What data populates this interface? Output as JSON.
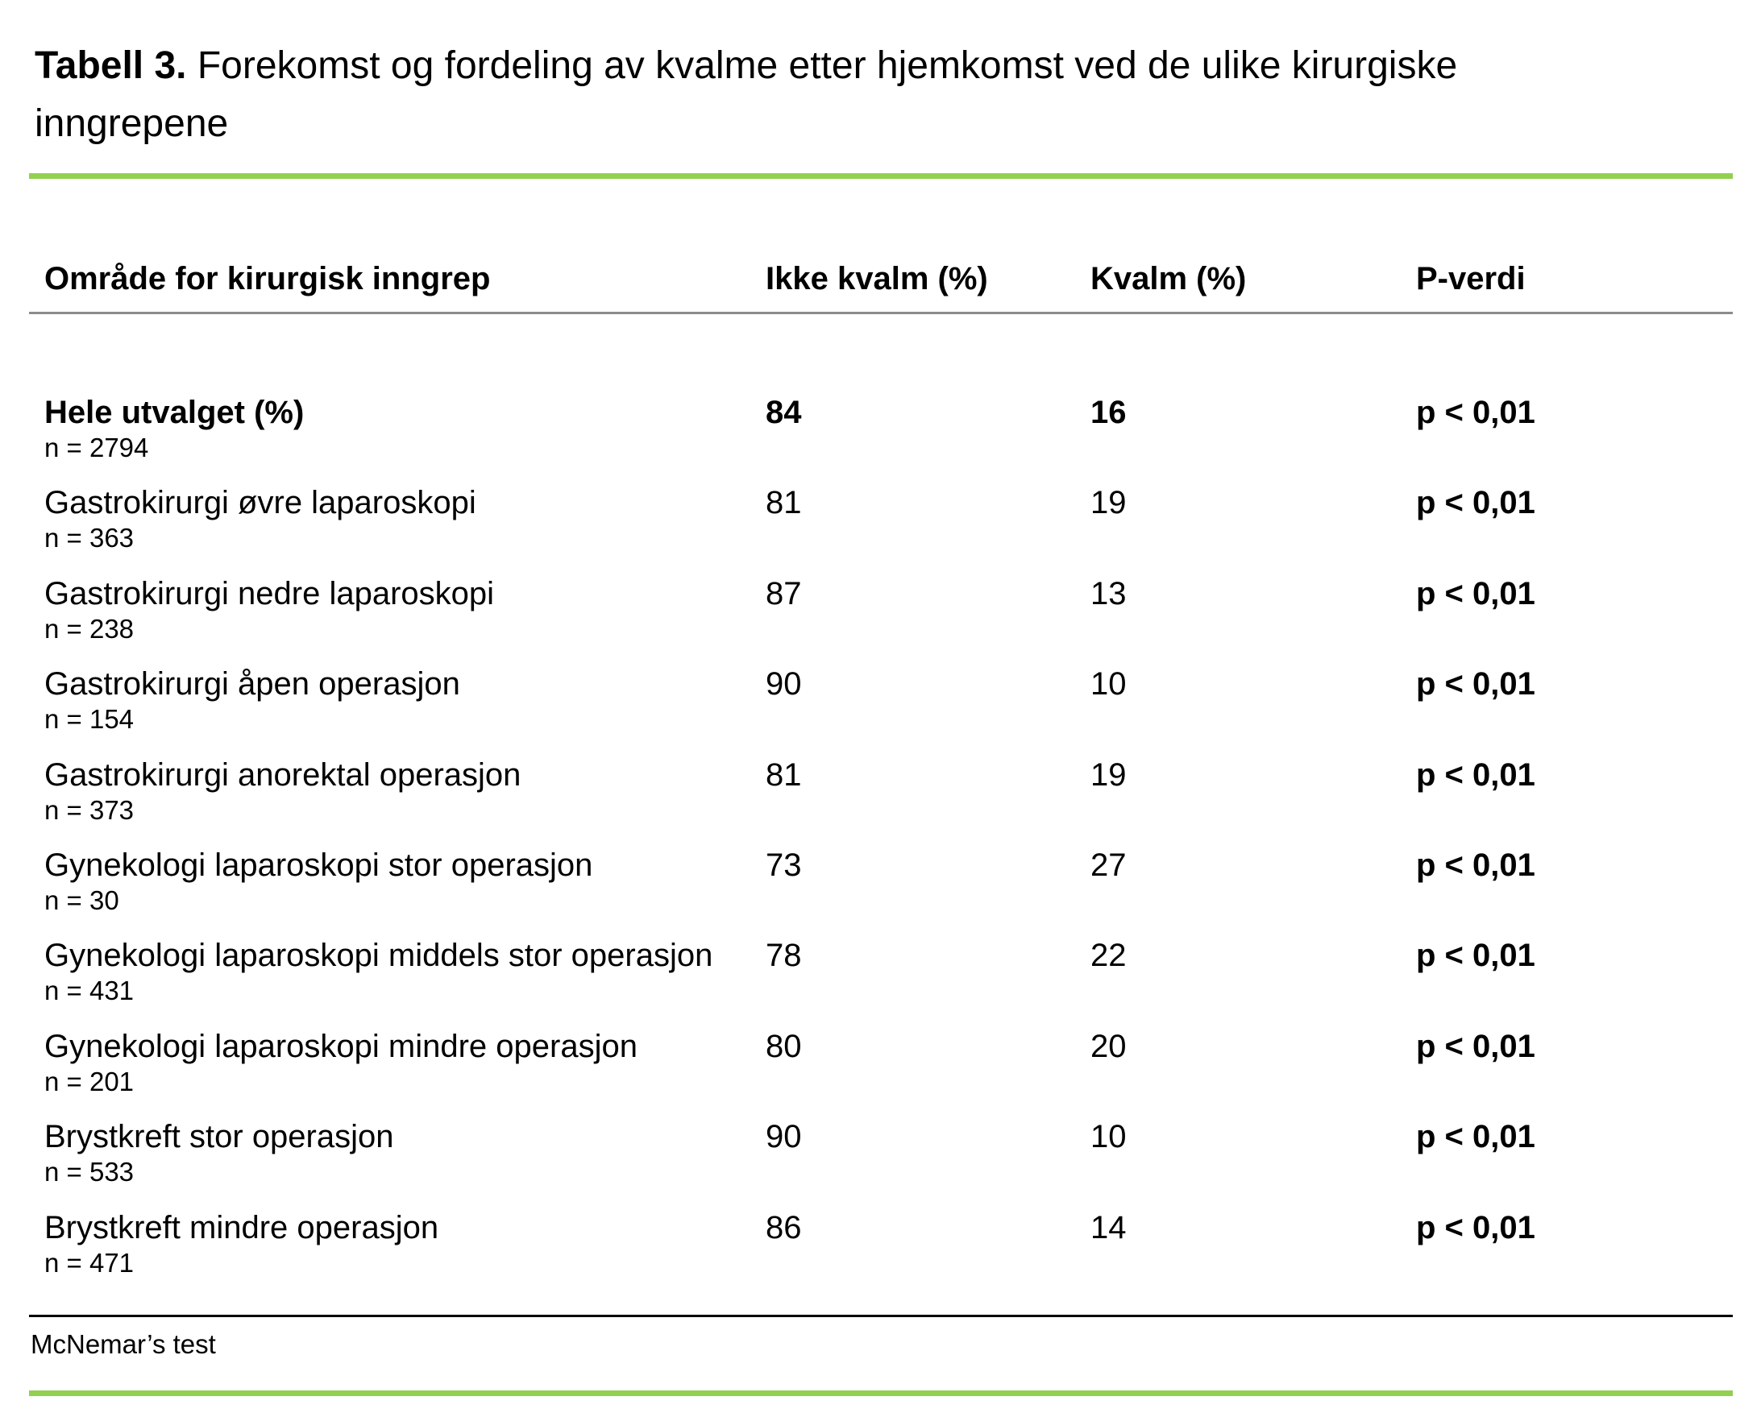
{
  "title": {
    "label": "Tabell 3.",
    "text": "Forekomst og fordeling av kvalme etter hjemkomst ved de ulike kirurgiske inngrepene"
  },
  "table": {
    "columns": [
      "Område for kirurgisk inngrep",
      "Ikke kvalm (%)",
      "Kvalm (%)",
      "P-verdi"
    ],
    "rows": [
      {
        "label": "Hele utvalget (%)",
        "n": "n = 2794",
        "ikke_kvalm": "84",
        "kvalm": "16",
        "p_verdi": "p < 0,01",
        "emphasis": true
      },
      {
        "label": "Gastrokirurgi øvre laparoskopi",
        "n": "n = 363",
        "ikke_kvalm": "81",
        "kvalm": "19",
        "p_verdi": "p < 0,01",
        "emphasis": false
      },
      {
        "label": "Gastrokirurgi nedre laparoskopi",
        "n": "n = 238",
        "ikke_kvalm": "87",
        "kvalm": "13",
        "p_verdi": "p < 0,01",
        "emphasis": false
      },
      {
        "label": "Gastrokirurgi åpen operasjon",
        "n": "n = 154",
        "ikke_kvalm": "90",
        "kvalm": "10",
        "p_verdi": "p < 0,01",
        "emphasis": false
      },
      {
        "label": "Gastrokirurgi anorektal operasjon",
        "n": "n = 373",
        "ikke_kvalm": "81",
        "kvalm": "19",
        "p_verdi": "p < 0,01",
        "emphasis": false
      },
      {
        "label": "Gynekologi laparoskopi stor operasjon",
        "n": "n = 30",
        "ikke_kvalm": "73",
        "kvalm": "27",
        "p_verdi": "p < 0,01",
        "emphasis": false
      },
      {
        "label": "Gynekologi laparoskopi middels stor operasjon",
        "n": "n = 431",
        "ikke_kvalm": "78",
        "kvalm": "22",
        "p_verdi": "p < 0,01",
        "emphasis": false
      },
      {
        "label": "Gynekologi laparoskopi mindre operasjon",
        "n": "n = 201",
        "ikke_kvalm": "80",
        "kvalm": "20",
        "p_verdi": "p < 0,01",
        "emphasis": false
      },
      {
        "label": "Brystkreft stor operasjon",
        "n": "n = 533",
        "ikke_kvalm": "90",
        "kvalm": "10",
        "p_verdi": "p < 0,01",
        "emphasis": false
      },
      {
        "label": "Brystkreft mindre operasjon",
        "n": "n = 471",
        "ikke_kvalm": "86",
        "kvalm": "14",
        "p_verdi": "p < 0,01",
        "emphasis": false
      }
    ]
  },
  "footnote": "McNemar’s test",
  "colors": {
    "accent_green": "#92D050",
    "header_rule_gray": "#8C8C8C",
    "footer_rule_black": "#000000"
  }
}
